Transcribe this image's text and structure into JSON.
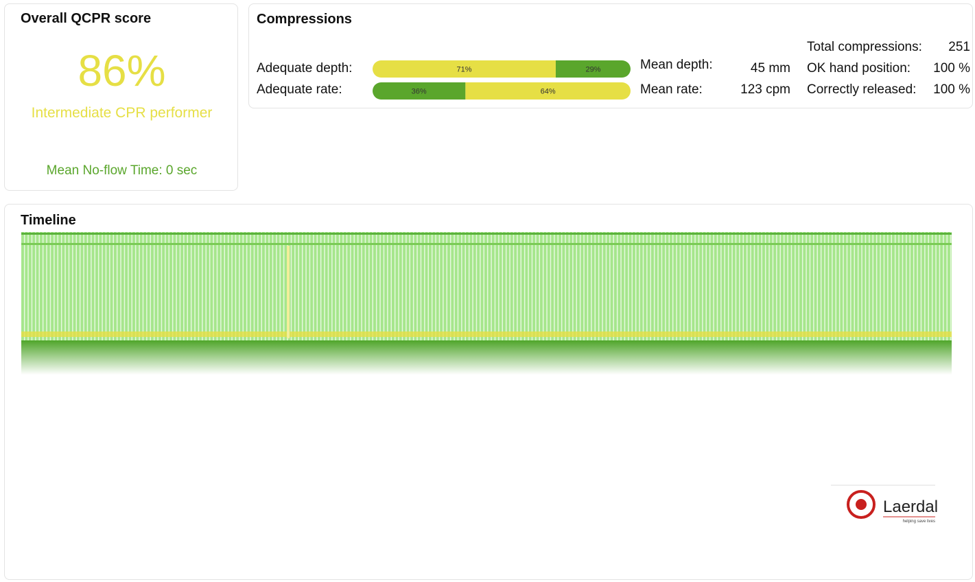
{
  "score_panel": {
    "title": "Overall QCPR score",
    "score": "86%",
    "level": "Intermediate CPR performer",
    "no_flow": "Mean No-flow Time: 0 sec"
  },
  "compressions": {
    "title": "Compressions",
    "bars": [
      {
        "label": "Adequate depth:",
        "segments": [
          {
            "value": 71,
            "label": "71%",
            "color": "#e6df45"
          },
          {
            "value": 29,
            "label": "29%",
            "color": "#5aa62c"
          }
        ]
      },
      {
        "label": "Adequate rate:",
        "segments": [
          {
            "value": 36,
            "label": "36%",
            "color": "#5aa62c"
          },
          {
            "value": 64,
            "label": "64%",
            "color": "#e6df45"
          }
        ]
      }
    ],
    "means": [
      {
        "label": "Mean depth:",
        "value": "45 mm"
      },
      {
        "label": "Mean rate:",
        "value": "123 cpm"
      }
    ],
    "totals": [
      {
        "label": "Total compressions:",
        "value": "251"
      },
      {
        "label": "OK hand position:",
        "value": "100 %"
      },
      {
        "label": "Correctly released:",
        "value": "100 %"
      }
    ]
  },
  "timeline": {
    "title": "Timeline"
  },
  "logo": {
    "name": "Laerdal",
    "tagline": "helping save lives"
  }
}
